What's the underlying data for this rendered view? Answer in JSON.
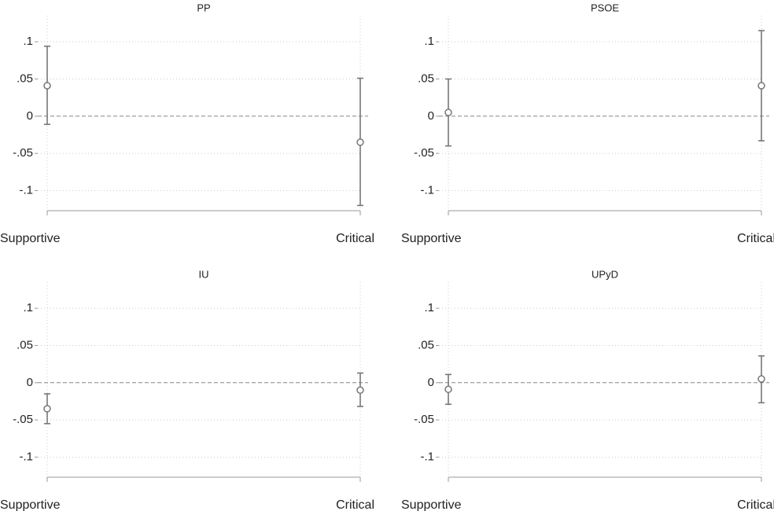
{
  "chart_data": [
    {
      "type": "errorbar",
      "title": "PP",
      "categories": [
        "Supportive",
        "Critical"
      ],
      "values": [
        0.041,
        -0.035
      ],
      "lower": [
        -0.011,
        -0.12
      ],
      "upper": [
        0.094,
        0.051
      ],
      "color": "#777777",
      "ylim": [
        -0.127,
        0.135
      ],
      "yticks": [
        {
          "value": 0.1,
          "label": ".1"
        },
        {
          "value": 0.05,
          "label": ".05"
        },
        0,
        {
          "value": -0.05,
          "label": "-.05"
        },
        {
          "value": -0.1,
          "label": "-.1"
        }
      ],
      "grid": true,
      "yline": 0
    },
    {
      "type": "errorbar",
      "title": "PSOE",
      "categories": [
        "Supportive",
        "Critical"
      ],
      "values": [
        0.005,
        0.041
      ],
      "lower": [
        -0.04,
        -0.033
      ],
      "upper": [
        0.05,
        0.115
      ],
      "color": "#777777",
      "ylim": [
        -0.127,
        0.135
      ],
      "yticks": [
        {
          "value": 0.1,
          "label": ".1"
        },
        {
          "value": 0.05,
          "label": ".05"
        },
        0,
        {
          "value": -0.05,
          "label": "-.05"
        },
        {
          "value": -0.1,
          "label": "-.1"
        }
      ],
      "grid": true,
      "yline": 0
    },
    {
      "type": "errorbar",
      "title": "IU",
      "categories": [
        "Supportive",
        "Critical"
      ],
      "values": [
        -0.035,
        -0.01
      ],
      "lower": [
        -0.055,
        -0.032
      ],
      "upper": [
        -0.015,
        0.013
      ],
      "color": "#777777",
      "ylim": [
        -0.127,
        0.135
      ],
      "yticks": [
        {
          "value": 0.1,
          "label": ".1"
        },
        {
          "value": 0.05,
          "label": ".05"
        },
        0,
        {
          "value": -0.05,
          "label": "-.05"
        },
        {
          "value": -0.1,
          "label": "-.1"
        }
      ],
      "grid": true,
      "yline": 0
    },
    {
      "type": "errorbar",
      "title": "UPyD",
      "categories": [
        "Supportive",
        "Critical"
      ],
      "values": [
        -0.009,
        0.005
      ],
      "lower": [
        -0.029,
        -0.027
      ],
      "upper": [
        0.011,
        0.036
      ],
      "color": "#777777",
      "ylim": [
        -0.127,
        0.135
      ],
      "yticks": [
        {
          "value": 0.1,
          "label": ".1"
        },
        {
          "value": 0.05,
          "label": ".05"
        },
        0,
        {
          "value": -0.05,
          "label": "-.05"
        },
        {
          "value": -0.1,
          "label": "-.1"
        }
      ],
      "grid": true,
      "yline": 0
    }
  ]
}
